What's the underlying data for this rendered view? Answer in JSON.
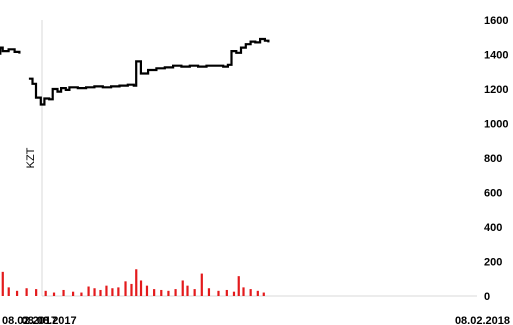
{
  "chart_data": {
    "type": "line",
    "title": "",
    "ylabel": "KZT",
    "xlabel": "",
    "x_range": [
      "08.02.2017",
      "08.02.2018"
    ],
    "x_tick_labels": [
      "08.02.2017",
      "08.08.2017",
      "08.02.2018"
    ],
    "ylim": [
      0,
      1600
    ],
    "y_tick_labels": [
      "0",
      "200",
      "400",
      "600",
      "800",
      "1000",
      "1200",
      "1400",
      "1600"
    ],
    "grid": false,
    "legend": "none",
    "series": [
      {
        "type": "line",
        "color": "#000000",
        "points": [
          [
            "2017-02-08",
            1340
          ],
          [
            "2017-02-10",
            1355
          ],
          [
            "2017-02-14",
            1330
          ],
          [
            "2017-02-20",
            1345
          ],
          [
            "2017-02-27",
            1335
          ],
          [
            "2017-03-06",
            1340
          ],
          [
            "2017-03-13",
            1320
          ],
          [
            "2017-03-17",
            1290
          ],
          [
            "2017-03-24",
            1300
          ],
          [
            "2017-03-31",
            1295
          ],
          [
            "2017-04-07",
            1305
          ],
          [
            "2017-04-14",
            1315
          ],
          [
            "2017-04-21",
            1325
          ],
          [
            "2017-04-28",
            1340
          ],
          [
            "2017-05-05",
            1345
          ],
          [
            "2017-05-12",
            1355
          ],
          [
            "2017-05-19",
            1360
          ],
          [
            "2017-05-26",
            1370
          ],
          [
            "2017-06-02",
            1375
          ],
          [
            "2017-06-09",
            1380
          ],
          [
            "2017-06-16",
            1395
          ],
          [
            "2017-06-23",
            1405
          ],
          [
            "2017-06-28",
            1440
          ],
          [
            "2017-06-30",
            1420
          ],
          [
            "2017-07-05",
            1430
          ],
          [
            "2017-07-10",
            1415
          ],
          [
            "2017-07-14",
            1405
          ]
        ]
      },
      {
        "type": "line",
        "color": "#000000",
        "points": [
          [
            "2017-07-22",
            1260
          ],
          [
            "2017-07-25",
            1230
          ],
          [
            "2017-07-28",
            1150
          ],
          [
            "2017-08-01",
            1110
          ],
          [
            "2017-08-04",
            1145
          ],
          [
            "2017-08-08",
            1140
          ],
          [
            "2017-08-11",
            1200
          ],
          [
            "2017-08-15",
            1185
          ],
          [
            "2017-08-18",
            1205
          ],
          [
            "2017-08-22",
            1195
          ],
          [
            "2017-08-25",
            1210
          ],
          [
            "2017-09-01",
            1205
          ],
          [
            "2017-09-08",
            1210
          ],
          [
            "2017-09-15",
            1215
          ],
          [
            "2017-09-22",
            1210
          ],
          [
            "2017-09-29",
            1215
          ],
          [
            "2017-10-06",
            1220
          ],
          [
            "2017-10-13",
            1225
          ],
          [
            "2017-10-18",
            1220
          ],
          [
            "2017-10-20",
            1360
          ],
          [
            "2017-10-24",
            1290
          ],
          [
            "2017-10-30",
            1310
          ],
          [
            "2017-11-06",
            1320
          ],
          [
            "2017-11-13",
            1325
          ],
          [
            "2017-11-20",
            1335
          ],
          [
            "2017-11-27",
            1330
          ],
          [
            "2017-12-04",
            1335
          ],
          [
            "2017-12-11",
            1330
          ],
          [
            "2017-12-18",
            1335
          ],
          [
            "2017-12-25",
            1335
          ],
          [
            "2018-01-01",
            1330
          ],
          [
            "2018-01-05",
            1340
          ],
          [
            "2018-01-08",
            1420
          ],
          [
            "2018-01-12",
            1410
          ],
          [
            "2018-01-16",
            1440
          ],
          [
            "2018-01-20",
            1460
          ],
          [
            "2018-01-24",
            1475
          ],
          [
            "2018-01-28",
            1470
          ],
          [
            "2018-02-01",
            1490
          ],
          [
            "2018-02-05",
            1480
          ],
          [
            "2018-02-08",
            1470
          ]
        ]
      },
      {
        "type": "bar",
        "color": "#e31a1c",
        "points": [
          [
            "2017-02-10",
            300
          ],
          [
            "2017-02-12",
            30
          ],
          [
            "2017-02-16",
            20
          ],
          [
            "2017-02-22",
            140
          ],
          [
            "2017-02-26",
            20
          ],
          [
            "2017-03-05",
            10
          ],
          [
            "2017-03-15",
            15
          ],
          [
            "2017-03-25",
            10
          ],
          [
            "2017-04-05",
            15
          ],
          [
            "2017-04-16",
            30
          ],
          [
            "2017-04-20",
            120
          ],
          [
            "2017-04-25",
            60
          ],
          [
            "2017-04-30",
            100
          ],
          [
            "2017-05-04",
            80
          ],
          [
            "2017-05-09",
            95
          ],
          [
            "2017-05-14",
            60
          ],
          [
            "2017-05-19",
            75
          ],
          [
            "2017-05-25",
            40
          ],
          [
            "2017-06-01",
            95
          ],
          [
            "2017-06-05",
            130
          ],
          [
            "2017-06-10",
            80
          ],
          [
            "2017-06-14",
            65
          ],
          [
            "2017-06-18",
            115
          ],
          [
            "2017-06-22",
            155
          ],
          [
            "2017-06-26",
            70
          ],
          [
            "2017-06-30",
            140
          ],
          [
            "2017-07-05",
            50
          ],
          [
            "2017-07-12",
            30
          ],
          [
            "2017-07-20",
            45
          ],
          [
            "2017-07-28",
            40
          ],
          [
            "2017-08-05",
            30
          ],
          [
            "2017-08-12",
            20
          ],
          [
            "2017-08-20",
            35
          ],
          [
            "2017-08-28",
            25
          ],
          [
            "2017-09-04",
            20
          ],
          [
            "2017-09-10",
            55
          ],
          [
            "2017-09-15",
            45
          ],
          [
            "2017-09-20",
            35
          ],
          [
            "2017-09-25",
            60
          ],
          [
            "2017-09-30",
            45
          ],
          [
            "2017-10-05",
            50
          ],
          [
            "2017-10-11",
            85
          ],
          [
            "2017-10-16",
            70
          ],
          [
            "2017-10-20",
            155
          ],
          [
            "2017-10-24",
            90
          ],
          [
            "2017-10-29",
            60
          ],
          [
            "2017-11-04",
            40
          ],
          [
            "2017-11-10",
            35
          ],
          [
            "2017-11-16",
            30
          ],
          [
            "2017-11-22",
            40
          ],
          [
            "2017-11-28",
            90
          ],
          [
            "2017-12-02",
            60
          ],
          [
            "2017-12-08",
            40
          ],
          [
            "2017-12-14",
            130
          ],
          [
            "2017-12-20",
            45
          ],
          [
            "2017-12-28",
            30
          ],
          [
            "2018-01-04",
            35
          ],
          [
            "2018-01-10",
            25
          ],
          [
            "2018-01-14",
            115
          ],
          [
            "2018-01-18",
            50
          ],
          [
            "2018-01-24",
            40
          ],
          [
            "2018-01-30",
            30
          ],
          [
            "2018-02-04",
            20
          ]
        ]
      }
    ]
  }
}
